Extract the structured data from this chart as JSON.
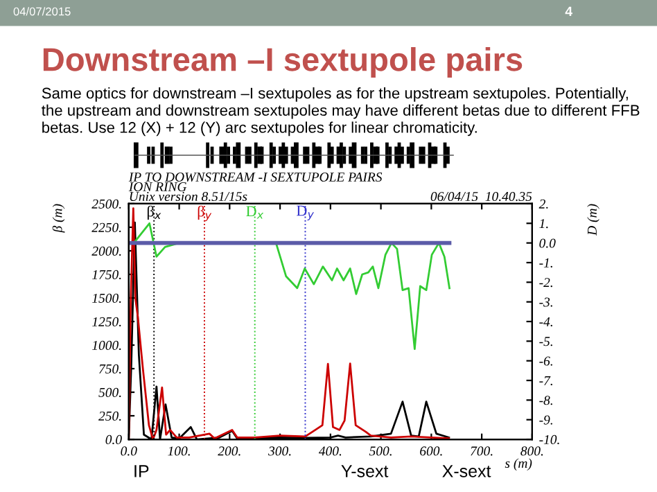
{
  "chart_data": {
    "type": "line",
    "title": "Downstream –I sextupole pairs",
    "subtitle": "Same optics for downstream –I sextupoles as for the upstream sextupoles. Potentially,\nthe upstream and downstream sextupoles may have different betas due to different FFB\nbetas. Use 12 (X) + 12 (Y) arc sextupoles for linear chromaticity.",
    "xlabel": "s (m)",
    "ylabel": "β (m)",
    "y2label": "D (m)",
    "annotations": [
      "04/07/2015",
      "4",
      "IP TO DOWNSTREAM -I SEXTUPOLE PAIRS",
      "ION RING",
      "Unix version 8.51/15s",
      "06/04/15  10.40.35",
      "IP",
      "Y-sext",
      "X-sext"
    ],
    "series": [
      {
        "color": "#000000",
        "x": [
          0,
          5,
          12,
          20,
          30,
          45,
          55,
          62,
          73,
          85,
          100,
          123,
          135,
          180,
          205,
          215,
          250,
          300,
          350,
          400,
          415,
          430,
          480,
          520,
          543,
          560,
          575,
          590,
          610,
          635
        ],
        "values": [
          0,
          800,
          2300,
          900,
          50,
          0,
          560,
          0,
          370,
          20,
          10,
          130,
          0,
          20,
          90,
          10,
          15,
          20,
          15,
          20,
          40,
          20,
          30,
          60,
          400,
          40,
          30,
          400,
          60,
          20
        ]
      },
      {
        "color": "#cc0000",
        "x": [
          0,
          4,
          9,
          13,
          18,
          28,
          40,
          48,
          55,
          66,
          74,
          82,
          95,
          120,
          160,
          170,
          205,
          215,
          250,
          300,
          350,
          370,
          384,
          395,
          405,
          418,
          428,
          439,
          450,
          470,
          480,
          520,
          560,
          600,
          635
        ],
        "values": [
          0,
          1500,
          2450,
          1500,
          1300,
          750,
          150,
          0,
          100,
          550,
          50,
          100,
          20,
          20,
          60,
          10,
          100,
          20,
          20,
          40,
          30,
          100,
          150,
          800,
          130,
          100,
          200,
          805,
          150,
          80,
          40,
          20,
          30,
          20,
          10
        ]
      },
      {
        "color": "#33cc33",
        "axis": "y2",
        "x": [
          0,
          10,
          41,
          55,
          72,
          100,
          200,
          292,
          312,
          334,
          349,
          367,
          385,
          403,
          413,
          426,
          439,
          451,
          463,
          475,
          484,
          495,
          509,
          521,
          532,
          543,
          555,
          567,
          578,
          590,
          601,
          615,
          626,
          636
        ],
        "values": [
          0,
          0,
          1.0,
          -0.7,
          -0.2,
          0,
          0,
          0,
          -1.7,
          -2.3,
          -1.3,
          -2.1,
          -1.2,
          -1.9,
          -1.3,
          -1.9,
          -1.3,
          -2.6,
          -1.6,
          -1.5,
          -1.2,
          -2.3,
          -0.6,
          0,
          -0.3,
          -2.4,
          -2.3,
          -5.4,
          -2.2,
          -2.4,
          -0.6,
          0,
          -0.7,
          -2.3
        ]
      },
      {
        "color": "#5c5ca8",
        "axis": "y2",
        "x": [
          0,
          636
        ],
        "values": [
          0,
          0
        ]
      }
    ],
    "ref_lines": [
      {
        "axis": "x",
        "value": 50,
        "label": "β$_{x}$",
        "color": "#000000",
        "line_style": "dotted"
      },
      {
        "axis": "x",
        "value": 150,
        "label": "β$_{y}$",
        "color": "#cc0000",
        "line_style": "dotted"
      },
      {
        "axis": "x",
        "value": 250,
        "label": "D$_{x}$",
        "color": "#33cc33",
        "line_style": "dotted"
      },
      {
        "axis": "x",
        "value": 350,
        "label": "D$_{y}$",
        "color": "#3333cc",
        "line_style": "dotted"
      }
    ],
    "xlim": [
      0,
      800
    ],
    "ylim": [
      0,
      2500
    ],
    "y2lim": [
      -10,
      2
    ],
    "xticks": [
      {
        "value": 0,
        "label": "0.0"
      },
      {
        "value": 100,
        "label": "100."
      },
      {
        "value": 200,
        "label": "200."
      },
      {
        "value": 300,
        "label": "300."
      },
      {
        "value": 400,
        "label": "400."
      },
      {
        "value": 500,
        "label": "500."
      },
      {
        "value": 600,
        "label": "600."
      },
      {
        "value": 700,
        "label": "700."
      },
      {
        "value": 800,
        "label": "800."
      }
    ],
    "yticks": [
      {
        "value": 0,
        "label": "0.0"
      },
      {
        "value": 250,
        "label": "250."
      },
      {
        "value": 500,
        "label": "500."
      },
      {
        "value": 750,
        "label": "750."
      },
      {
        "value": 1000,
        "label": "1000."
      },
      {
        "value": 1250,
        "label": "1250."
      },
      {
        "value": 1500,
        "label": "1500."
      },
      {
        "value": 1750,
        "label": "1750."
      },
      {
        "value": 2000,
        "label": "2000."
      },
      {
        "value": 2250,
        "label": "2250."
      },
      {
        "value": 2500,
        "label": "2500."
      }
    ],
    "y2ticks": [
      {
        "value": 2,
        "label": "2."
      },
      {
        "value": 1,
        "label": "1."
      },
      {
        "value": 0,
        "label": "0.0"
      },
      {
        "value": -1,
        "label": "-1."
      },
      {
        "value": -2,
        "label": "-2."
      },
      {
        "value": -3,
        "label": "-3."
      },
      {
        "value": -4,
        "label": "-4."
      },
      {
        "value": -5,
        "label": "-5."
      },
      {
        "value": -6,
        "label": "-6."
      },
      {
        "value": -7,
        "label": "-7."
      },
      {
        "value": -8,
        "label": "-8."
      },
      {
        "value": -9,
        "label": "-9."
      },
      {
        "value": -10,
        "label": "-10."
      }
    ],
    "grid": false,
    "legend": false
  }
}
